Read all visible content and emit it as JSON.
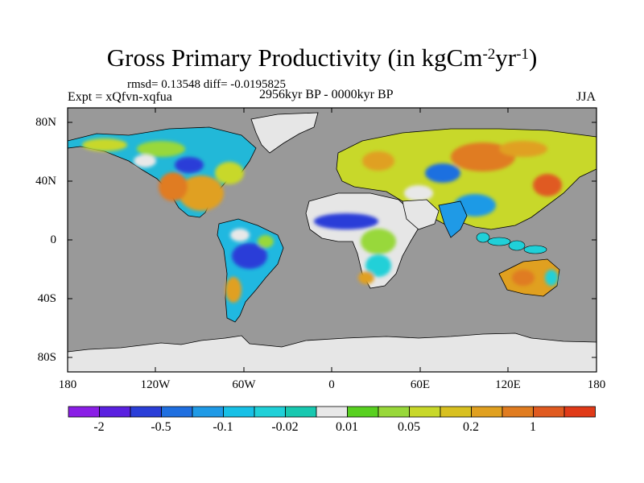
{
  "title": {
    "text": "Gross Primary Productivity (in kgCm",
    "sup1": "-2",
    "mid": "yr",
    "sup2": "-1",
    "end": ")"
  },
  "stats": "rmsd= 0.13548 diff= -0.0195825",
  "experiment": "Expt = xQfvn-xqfua",
  "period": "2956kyr BP - 0000kyr BP",
  "season": "JJA",
  "y_ticks": [
    "80N",
    "40N",
    "0",
    "40S",
    "80S"
  ],
  "x_ticks": [
    "180",
    "120W",
    "60W",
    "0",
    "60E",
    "120E",
    "180"
  ],
  "colorbar": {
    "labels": [
      "-2",
      "-0.5",
      "-0.1",
      "-0.02",
      "0.01",
      "0.05",
      "0.2",
      "1"
    ],
    "colors": [
      "#8a1ee6",
      "#5a20e0",
      "#2a3ed8",
      "#1f6fe0",
      "#1f9ae6",
      "#18c0e6",
      "#20d0d8",
      "#18c8b0",
      "#e8e8e8",
      "#58d020",
      "#98d83a",
      "#c8d82a",
      "#d8c020",
      "#e0a020",
      "#e07c20",
      "#e05a20",
      "#e03a18"
    ]
  },
  "map_colors": {
    "ocean": "#999999",
    "ice": "#e6e6e6"
  }
}
